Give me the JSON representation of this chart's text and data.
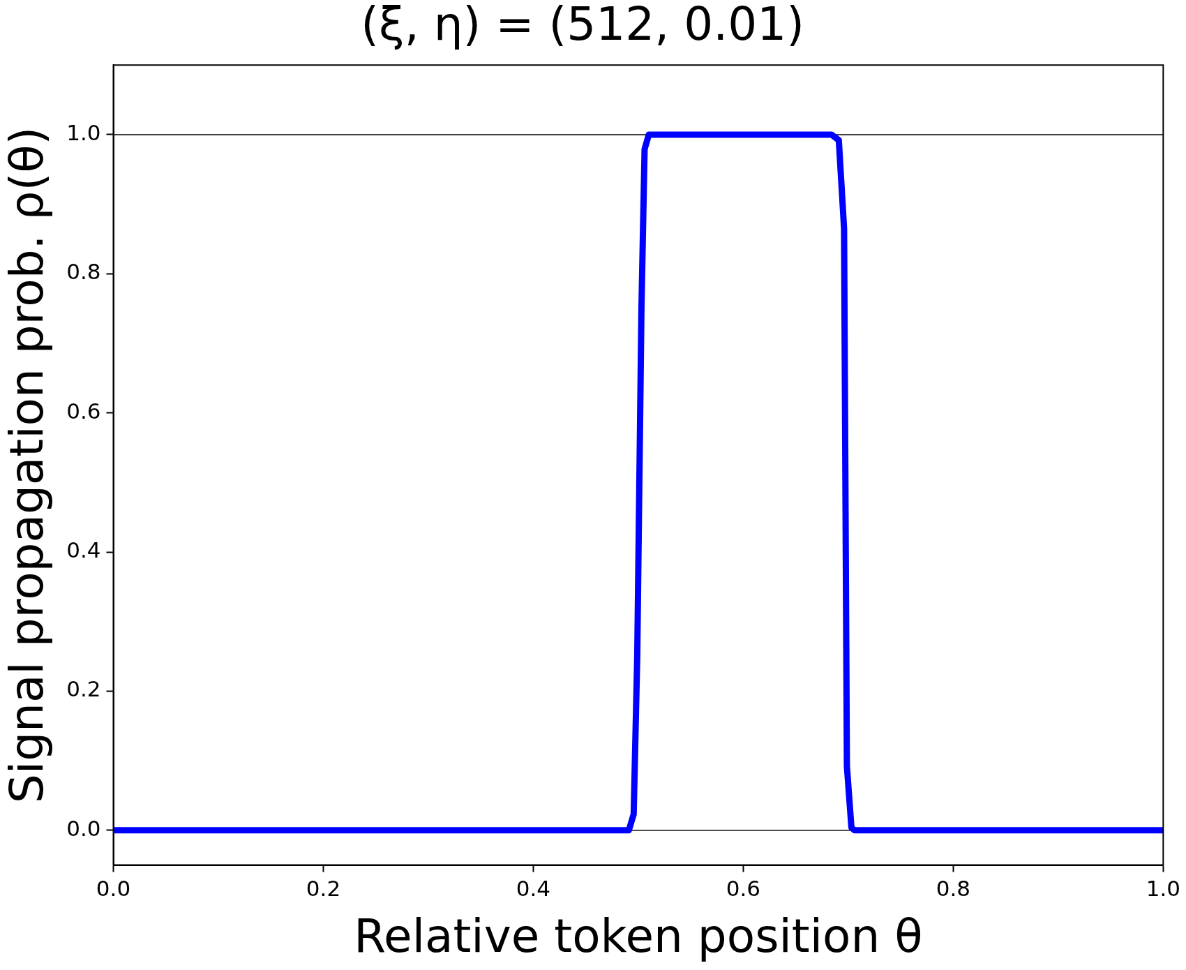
{
  "chart_data": {
    "type": "line",
    "title": "(ξ, η) = (512, 0.01)",
    "xlabel": "Relative token position θ",
    "ylabel": "Signal propagation prob. ρ(θ)",
    "xlim": [
      0,
      1
    ],
    "xticks": [
      {
        "value": 0,
        "label": "0.0"
      },
      0.2,
      0.4,
      0.6,
      0.8,
      {
        "value": 1,
        "label": "1.0"
      }
    ],
    "ylim": [
      -0.05,
      1.1
    ],
    "yticks": [
      {
        "value": 0,
        "label": "0.0"
      },
      0.2,
      0.4,
      0.6,
      0.8,
      {
        "value": 1,
        "label": "1.0"
      }
    ],
    "ref_lines": [
      {
        "axis": "y",
        "value": 0,
        "color": "#000000"
      },
      {
        "axis": "y",
        "value": 1,
        "color": "#000000"
      }
    ],
    "series": [
      {
        "color": "#0000ff",
        "x": [
          0,
          0.2,
          0.4,
          0.491,
          0.4956,
          0.499,
          0.503,
          0.506,
          0.51,
          0.6,
          0.684,
          0.691,
          0.696,
          0.6987,
          0.703,
          0.706,
          0.8,
          1
        ],
        "values": [
          0,
          0,
          0,
          0,
          0.023,
          0.25,
          0.75,
          0.979,
          1,
          1,
          1,
          0.992,
          0.865,
          0.092,
          0.004,
          0,
          0,
          0
        ]
      }
    ],
    "legend": false,
    "marker": "none",
    "line_style": "solid"
  }
}
